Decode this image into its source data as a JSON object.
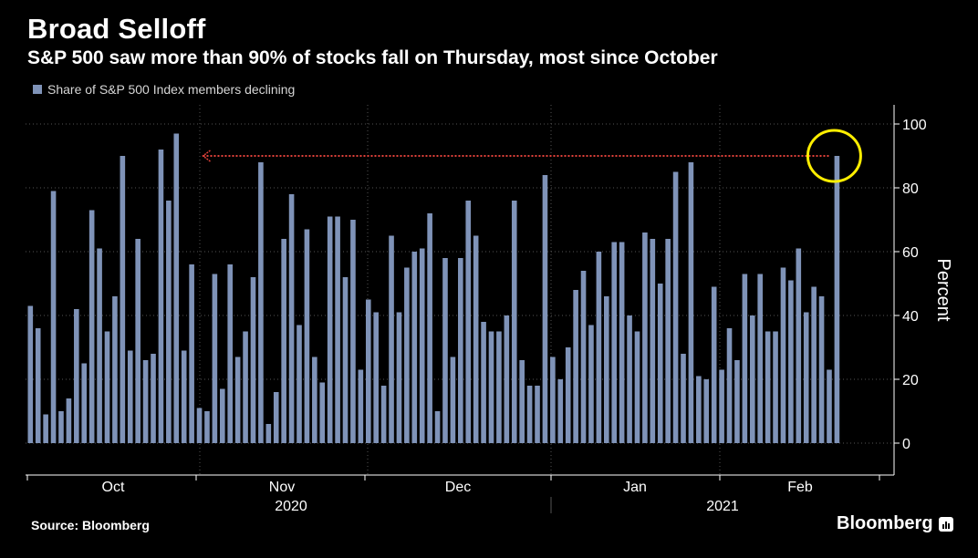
{
  "header": {
    "title": "Broad Selloff",
    "subtitle": "S&P 500 saw more than 90% of stocks fall on Thursday, most since October"
  },
  "legend": {
    "label": "Share of S&P 500 Index members declining"
  },
  "footer": {
    "source": "Source: Bloomberg",
    "brand": "Bloomberg"
  },
  "colors": {
    "bar": "#7f93b8",
    "background": "#000000",
    "arrow": "#e0413a",
    "highlight": "#ffee00",
    "grid": "#555555"
  },
  "chart_data": {
    "type": "bar",
    "ylabel": "Percent",
    "ylim": [
      -10,
      106
    ],
    "yticks": [
      0,
      20,
      40,
      60,
      80,
      100
    ],
    "grid": true,
    "legend_position": "top-left",
    "axis_side": "right",
    "month_labels": [
      "Oct",
      "Nov",
      "Dec",
      "Jan",
      "Feb"
    ],
    "year_labels": [
      "2020",
      "2021"
    ],
    "series": [
      {
        "name": "Share of S&P 500 Index members declining",
        "values": [
          43,
          36,
          9,
          79,
          10,
          14,
          42,
          25,
          73,
          61,
          35,
          46,
          90,
          29,
          64,
          26,
          28,
          92,
          76,
          97,
          29,
          56,
          11,
          10,
          53,
          17,
          56,
          27,
          35,
          52,
          88,
          6,
          16,
          64,
          78,
          37,
          67,
          27,
          19,
          71,
          71,
          52,
          70,
          23,
          45,
          41,
          18,
          65,
          41,
          55,
          60,
          61,
          72,
          10,
          58,
          27,
          58,
          76,
          65,
          38,
          35,
          35,
          40,
          76,
          26,
          18,
          18,
          84,
          27,
          20,
          30,
          48,
          54,
          37,
          60,
          46,
          63,
          63,
          40,
          35,
          66,
          64,
          50,
          64,
          85,
          28,
          88,
          21,
          20,
          49,
          23,
          36,
          26,
          53,
          40,
          53,
          35,
          35,
          55,
          51,
          61,
          41,
          49,
          46,
          23,
          90
        ]
      }
    ],
    "annotation": {
      "type": "arrow",
      "y": 90,
      "from_index": 19,
      "to_index": 105,
      "highlight_index": 105
    }
  }
}
